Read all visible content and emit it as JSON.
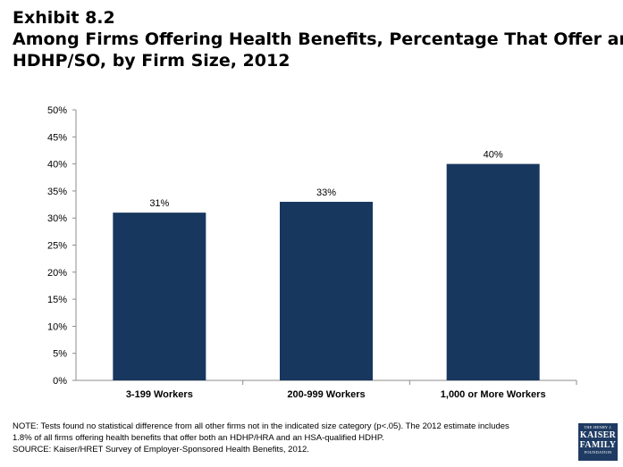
{
  "title": {
    "line1": "Exhibit 8.2",
    "line2": "Among Firms Offering Health Benefits, Percentage That Offer an",
    "line3": "HDHP/SO, by Firm Size, 2012"
  },
  "chart_data": {
    "type": "bar",
    "categories": [
      "3-199 Workers",
      "200-999 Workers",
      "1,000 or More Workers"
    ],
    "values": [
      31,
      33,
      40
    ],
    "data_labels": [
      "31%",
      "33%",
      "40%"
    ],
    "ylim": [
      0,
      50
    ],
    "yticks": [
      0,
      5,
      10,
      15,
      20,
      25,
      30,
      35,
      40,
      45,
      50
    ],
    "ytick_labels": [
      "0%",
      "5%",
      "10%",
      "15%",
      "20%",
      "25%",
      "30%",
      "35%",
      "40%",
      "45%",
      "50%"
    ],
    "xlabel": "",
    "ylabel": "",
    "grid": false,
    "bar_color": "#17375e"
  },
  "notes": {
    "line1": "NOTE: Tests found no statistical difference from all other firms not in the indicated size category  (p<.05).  The 2012 estimate includes",
    "line2": "1.8% of all firms offering health benefits that offer both an HDHP/HRA and an HSA-qualified HDHP.",
    "source": "SOURCE:  Kaiser/HRET Survey of Employer-Sponsored Health Benefits, 2012."
  },
  "logo": {
    "line1": "THE HENRY J.",
    "line2": "KAISER",
    "line3": "FAMILY",
    "line4": "FOUNDATION"
  }
}
